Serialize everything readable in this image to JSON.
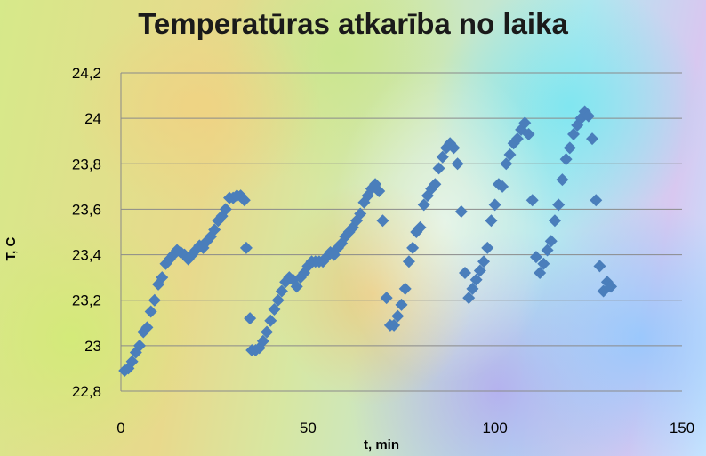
{
  "chart_data": {
    "type": "scatter",
    "title": "Temperatūras atkarība no laika",
    "xlabel": "t, min",
    "ylabel": "T, C",
    "xlim": [
      0,
      150
    ],
    "ylim": [
      22.8,
      24.2
    ],
    "x_ticks": [
      {
        "value": 0,
        "label": "0"
      },
      {
        "value": 50,
        "label": "50"
      },
      {
        "value": 100,
        "label": "100"
      },
      {
        "value": 150,
        "label": "150"
      }
    ],
    "y_ticks": [
      {
        "value": 22.8,
        "label": "22,8"
      },
      {
        "value": 23.0,
        "label": "23"
      },
      {
        "value": 23.2,
        "label": "23,2"
      },
      {
        "value": 23.4,
        "label": "23,4"
      },
      {
        "value": 23.6,
        "label": "23,6"
      },
      {
        "value": 23.8,
        "label": "23,8"
      },
      {
        "value": 24.0,
        "label": "24"
      },
      {
        "value": 24.2,
        "label": "24,2"
      }
    ],
    "grid": "horizontal",
    "marker": "diamond",
    "marker_color": "#4a7ebb",
    "points": [
      [
        1,
        22.89
      ],
      [
        2,
        22.9
      ],
      [
        3,
        22.93
      ],
      [
        4,
        22.97
      ],
      [
        5,
        23.0
      ],
      [
        6,
        23.06
      ],
      [
        7,
        23.08
      ],
      [
        8,
        23.15
      ],
      [
        9,
        23.2
      ],
      [
        10,
        23.27
      ],
      [
        11,
        23.3
      ],
      [
        12,
        23.36
      ],
      [
        13,
        23.38
      ],
      [
        14,
        23.4
      ],
      [
        15,
        23.42
      ],
      [
        16,
        23.41
      ],
      [
        17,
        23.4
      ],
      [
        18,
        23.38
      ],
      [
        19,
        23.4
      ],
      [
        20,
        23.42
      ],
      [
        21,
        23.44
      ],
      [
        22,
        23.43
      ],
      [
        23,
        23.46
      ],
      [
        24,
        23.48
      ],
      [
        25,
        23.51
      ],
      [
        26,
        23.55
      ],
      [
        27,
        23.57
      ],
      [
        28,
        23.6
      ],
      [
        29,
        23.65
      ],
      [
        30,
        23.65
      ],
      [
        31,
        23.66
      ],
      [
        32,
        23.66
      ],
      [
        33,
        23.64
      ],
      [
        33.5,
        23.43
      ],
      [
        34.5,
        23.12
      ],
      [
        35,
        22.98
      ],
      [
        36,
        22.98
      ],
      [
        37,
        22.99
      ],
      [
        38,
        23.02
      ],
      [
        39,
        23.06
      ],
      [
        40,
        23.11
      ],
      [
        41,
        23.16
      ],
      [
        42,
        23.2
      ],
      [
        43,
        23.24
      ],
      [
        44,
        23.28
      ],
      [
        45,
        23.3
      ],
      [
        46,
        23.29
      ],
      [
        47,
        23.26
      ],
      [
        48,
        23.3
      ],
      [
        49,
        23.32
      ],
      [
        50,
        23.35
      ],
      [
        51,
        23.37
      ],
      [
        52,
        23.37
      ],
      [
        53,
        23.37
      ],
      [
        54,
        23.37
      ],
      [
        55,
        23.39
      ],
      [
        56,
        23.41
      ],
      [
        57,
        23.4
      ],
      [
        58,
        23.43
      ],
      [
        59,
        23.45
      ],
      [
        60,
        23.48
      ],
      [
        61,
        23.5
      ],
      [
        62,
        23.52
      ],
      [
        63,
        23.55
      ],
      [
        64,
        23.58
      ],
      [
        65,
        23.63
      ],
      [
        66,
        23.66
      ],
      [
        67,
        23.69
      ],
      [
        68,
        23.71
      ],
      [
        69,
        23.68
      ],
      [
        70,
        23.55
      ],
      [
        71,
        23.21
      ],
      [
        72,
        23.09
      ],
      [
        73,
        23.09
      ],
      [
        74,
        23.13
      ],
      [
        75,
        23.18
      ],
      [
        76,
        23.25
      ],
      [
        77,
        23.37
      ],
      [
        78,
        23.43
      ],
      [
        79,
        23.5
      ],
      [
        80,
        23.52
      ],
      [
        81,
        23.62
      ],
      [
        82,
        23.66
      ],
      [
        83,
        23.69
      ],
      [
        84,
        23.71
      ],
      [
        85,
        23.78
      ],
      [
        86,
        23.83
      ],
      [
        87,
        23.87
      ],
      [
        88,
        23.89
      ],
      [
        89,
        23.87
      ],
      [
        90,
        23.8
      ],
      [
        91,
        23.59
      ],
      [
        92,
        23.32
      ],
      [
        93,
        23.21
      ],
      [
        94,
        23.25
      ],
      [
        95,
        23.29
      ],
      [
        96,
        23.33
      ],
      [
        97,
        23.37
      ],
      [
        98,
        23.43
      ],
      [
        99,
        23.55
      ],
      [
        100,
        23.62
      ],
      [
        101,
        23.71
      ],
      [
        102,
        23.7
      ],
      [
        103,
        23.8
      ],
      [
        104,
        23.84
      ],
      [
        105,
        23.89
      ],
      [
        106,
        23.91
      ],
      [
        107,
        23.95
      ],
      [
        108,
        23.98
      ],
      [
        109,
        23.93
      ],
      [
        110,
        23.64
      ],
      [
        111,
        23.39
      ],
      [
        112,
        23.32
      ],
      [
        113,
        23.36
      ],
      [
        114,
        23.42
      ],
      [
        115,
        23.46
      ],
      [
        116,
        23.55
      ],
      [
        117,
        23.62
      ],
      [
        118,
        23.73
      ],
      [
        119,
        23.82
      ],
      [
        120,
        23.87
      ],
      [
        121,
        23.93
      ],
      [
        122,
        23.97
      ],
      [
        123,
        24.0
      ],
      [
        124,
        24.03
      ],
      [
        125,
        24.01
      ],
      [
        126,
        23.91
      ],
      [
        127,
        23.64
      ],
      [
        128,
        23.35
      ],
      [
        129,
        23.24
      ],
      [
        130,
        23.28
      ],
      [
        131,
        23.26
      ]
    ]
  }
}
